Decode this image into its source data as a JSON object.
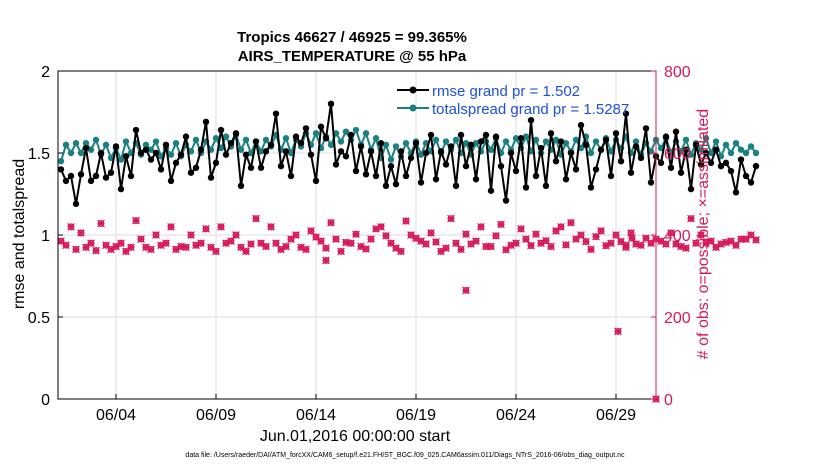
{
  "chart_data": {
    "type": "line",
    "title_line1": "Tropics 46627 / 46925 = 99.365%",
    "title_line2": "AIRS_TEMPERATURE @ 55 hPa",
    "xlabel": "Jun.01,2016 00:00:00 start",
    "ylabel_left": "rmse and totalspread",
    "ylabel_right": "# of obs: o=possible; ×=assimilated",
    "footer": "data file: /Users/raeder/DAI/ATM_forcXX/CAM6_setup/f.e21.FHIST_BGC.f09_025.CAM6assim.011/Diags_NTrS_2016-06/obs_diag_output.nc",
    "xlim": [
      0.6,
      30.5
    ],
    "ylim_left": [
      0,
      2
    ],
    "ylim_right": [
      0,
      800
    ],
    "x_ticks": [
      3.5,
      8.5,
      13.5,
      18.5,
      23.5,
      28.5
    ],
    "x_tick_labels": [
      "06/04",
      "06/09",
      "06/14",
      "06/19",
      "06/24",
      "06/29"
    ],
    "y_left_ticks": [
      0,
      0.5,
      1,
      1.5,
      2
    ],
    "y_left_tick_labels": [
      "0",
      "0.5",
      "1",
      "1.5",
      "2"
    ],
    "y_right_ticks": [
      0,
      200,
      400,
      600,
      800
    ],
    "y_right_tick_labels": [
      "0",
      "200",
      "400",
      "600",
      "800"
    ],
    "colors": {
      "rmse": "#000000",
      "spread": "#1a8080",
      "obs": "#d6185a",
      "grid": "#dedede",
      "legend_text": "#1f4fe0"
    },
    "x_start": 0.75,
    "x_step": 0.25,
    "series": [
      {
        "name": "rmse grand pr = 1.502",
        "axis": "left",
        "values": [
          1.4,
          1.33,
          1.36,
          1.19,
          1.37,
          1.53,
          1.33,
          1.36,
          1.5,
          1.35,
          1.38,
          1.54,
          1.28,
          1.48,
          1.36,
          1.64,
          1.5,
          1.52,
          1.46,
          1.5,
          1.4,
          1.55,
          1.33,
          1.44,
          1.49,
          1.6,
          1.38,
          1.41,
          1.52,
          1.69,
          1.35,
          1.44,
          1.64,
          1.49,
          1.56,
          1.62,
          1.3,
          1.49,
          1.41,
          1.57,
          1.41,
          1.51,
          1.55,
          1.74,
          1.42,
          1.51,
          1.36,
          1.6,
          1.56,
          1.65,
          1.49,
          1.33,
          1.66,
          1.59,
          1.8,
          1.43,
          1.51,
          1.48,
          1.61,
          1.39,
          1.54,
          1.37,
          1.51,
          1.36,
          1.56,
          1.3,
          1.42,
          1.31,
          1.51,
          1.36,
          1.47,
          1.56,
          1.32,
          1.5,
          1.61,
          1.34,
          1.51,
          1.43,
          1.54,
          1.3,
          1.61,
          1.42,
          1.55,
          1.34,
          1.57,
          1.61,
          1.27,
          1.6,
          1.42,
          1.21,
          1.5,
          1.39,
          1.59,
          1.29,
          1.7,
          1.36,
          1.53,
          1.3,
          1.62,
          1.45,
          1.57,
          1.34,
          1.5,
          1.4,
          1.67,
          1.55,
          1.29,
          1.4,
          1.52,
          1.58,
          1.36,
          1.62,
          1.45,
          1.74,
          1.38,
          1.54,
          1.47,
          1.65,
          1.32,
          1.48,
          1.44,
          1.6,
          1.41,
          1.63,
          1.38,
          1.52,
          1.28,
          1.55,
          1.43,
          1.5,
          1.44,
          1.52,
          1.42,
          1.44,
          1.39,
          1.26,
          1.46,
          1.36,
          1.32,
          1.42
        ]
      },
      {
        "name": "totalspread grand pr = 1.5287",
        "axis": "left",
        "values": [
          1.45,
          1.55,
          1.5,
          1.56,
          1.5,
          1.56,
          1.52,
          1.58,
          1.49,
          1.55,
          1.47,
          1.53,
          1.46,
          1.57,
          1.5,
          1.56,
          1.49,
          1.55,
          1.52,
          1.57,
          1.48,
          1.53,
          1.49,
          1.56,
          1.48,
          1.55,
          1.51,
          1.58,
          1.5,
          1.57,
          1.52,
          1.59,
          1.53,
          1.6,
          1.54,
          1.61,
          1.52,
          1.58,
          1.5,
          1.57,
          1.51,
          1.58,
          1.54,
          1.61,
          1.52,
          1.59,
          1.5,
          1.58,
          1.54,
          1.62,
          1.55,
          1.62,
          1.53,
          1.6,
          1.55,
          1.62,
          1.57,
          1.63,
          1.58,
          1.64,
          1.55,
          1.62,
          1.52,
          1.59,
          1.47,
          1.55,
          1.46,
          1.54,
          1.48,
          1.56,
          1.5,
          1.57,
          1.49,
          1.56,
          1.51,
          1.58,
          1.5,
          1.57,
          1.52,
          1.58,
          1.5,
          1.56,
          1.49,
          1.56,
          1.51,
          1.57,
          1.52,
          1.59,
          1.5,
          1.57,
          1.52,
          1.59,
          1.53,
          1.6,
          1.51,
          1.58,
          1.5,
          1.57,
          1.52,
          1.58,
          1.49,
          1.56,
          1.51,
          1.58,
          1.53,
          1.6,
          1.5,
          1.57,
          1.52,
          1.59,
          1.51,
          1.58,
          1.53,
          1.6,
          1.5,
          1.57,
          1.49,
          1.56,
          1.51,
          1.58,
          1.53,
          1.59,
          1.5,
          1.57,
          1.51,
          1.58,
          1.49,
          1.56,
          1.52,
          1.59,
          1.5,
          1.57,
          1.48,
          1.55,
          1.5,
          1.56,
          1.52,
          1.5,
          1.54,
          1.5
        ]
      },
      {
        "name": "obs_possible",
        "axis": "right",
        "values": [
          385,
          375,
          420,
          365,
          405,
          370,
          380,
          362,
          428,
          375,
          365,
          372,
          380,
          360,
          370,
          435,
          390,
          370,
          365,
          400,
          375,
          380,
          420,
          365,
          372,
          370,
          400,
          375,
          380,
          415,
          370,
          360,
          420,
          380,
          385,
          400,
          370,
          360,
          378,
          440,
          380,
          372,
          420,
          380,
          365,
          372,
          390,
          400,
          370,
          365,
          410,
          395,
          385,
          368,
          430,
          390,
          360,
          382,
          380,
          402,
          372,
          366,
          390,
          415,
          420,
          398,
          380,
          368,
          360,
          434,
          400,
          392,
          385,
          378,
          405,
          383,
          360,
          368,
          440,
          380,
          365,
          402,
          378,
          385,
          420,
          372,
          372,
          398,
          426,
          364,
          375,
          380,
          415,
          390,
          374,
          402,
          380,
          386,
          372,
          410,
          420,
          376,
          430,
          390,
          400,
          384,
          365,
          396,
          410,
          374,
          380,
          400,
          384,
          370,
          405,
          378,
          375,
          392,
          380,
          390,
          385,
          378,
          405,
          378,
          372,
          368,
          440,
          380,
          400,
          380,
          385,
          370,
          378,
          382,
          385,
          375,
          390,
          390,
          400,
          388
        ]
      },
      {
        "name": "obs_assimilated",
        "axis": "right",
        "values": [
          385,
          375,
          420,
          365,
          405,
          370,
          380,
          362,
          428,
          375,
          365,
          372,
          380,
          360,
          370,
          435,
          390,
          370,
          365,
          400,
          375,
          380,
          420,
          365,
          372,
          370,
          400,
          375,
          380,
          415,
          370,
          360,
          420,
          380,
          385,
          400,
          370,
          360,
          378,
          440,
          380,
          372,
          420,
          380,
          365,
          372,
          390,
          400,
          370,
          365,
          410,
          395,
          385,
          368,
          430,
          390,
          360,
          382,
          380,
          402,
          372,
          366,
          390,
          415,
          420,
          398,
          380,
          368,
          360,
          434,
          400,
          392,
          385,
          378,
          405,
          383,
          360,
          368,
          440,
          380,
          365,
          402,
          378,
          385,
          420,
          372,
          372,
          398,
          426,
          364,
          375,
          380,
          415,
          390,
          374,
          402,
          380,
          386,
          372,
          410,
          420,
          376,
          430,
          390,
          400,
          384,
          365,
          396,
          410,
          374,
          380,
          400,
          384,
          370,
          405,
          378,
          375,
          392,
          380,
          390,
          385,
          378,
          405,
          378,
          372,
          368,
          440,
          380,
          400,
          380,
          385,
          370,
          378,
          382,
          385,
          375,
          390,
          390,
          400,
          388
        ]
      }
    ],
    "extra_obs_points": [
      {
        "x": 14.0,
        "y": 338
      },
      {
        "x": 21.0,
        "y": 265
      },
      {
        "x": 28.6,
        "y": 165
      },
      {
        "x": 29.0,
        "y": 375
      },
      {
        "x": 29.3,
        "y": 392
      },
      {
        "x": 30.5,
        "y": 0
      }
    ]
  }
}
